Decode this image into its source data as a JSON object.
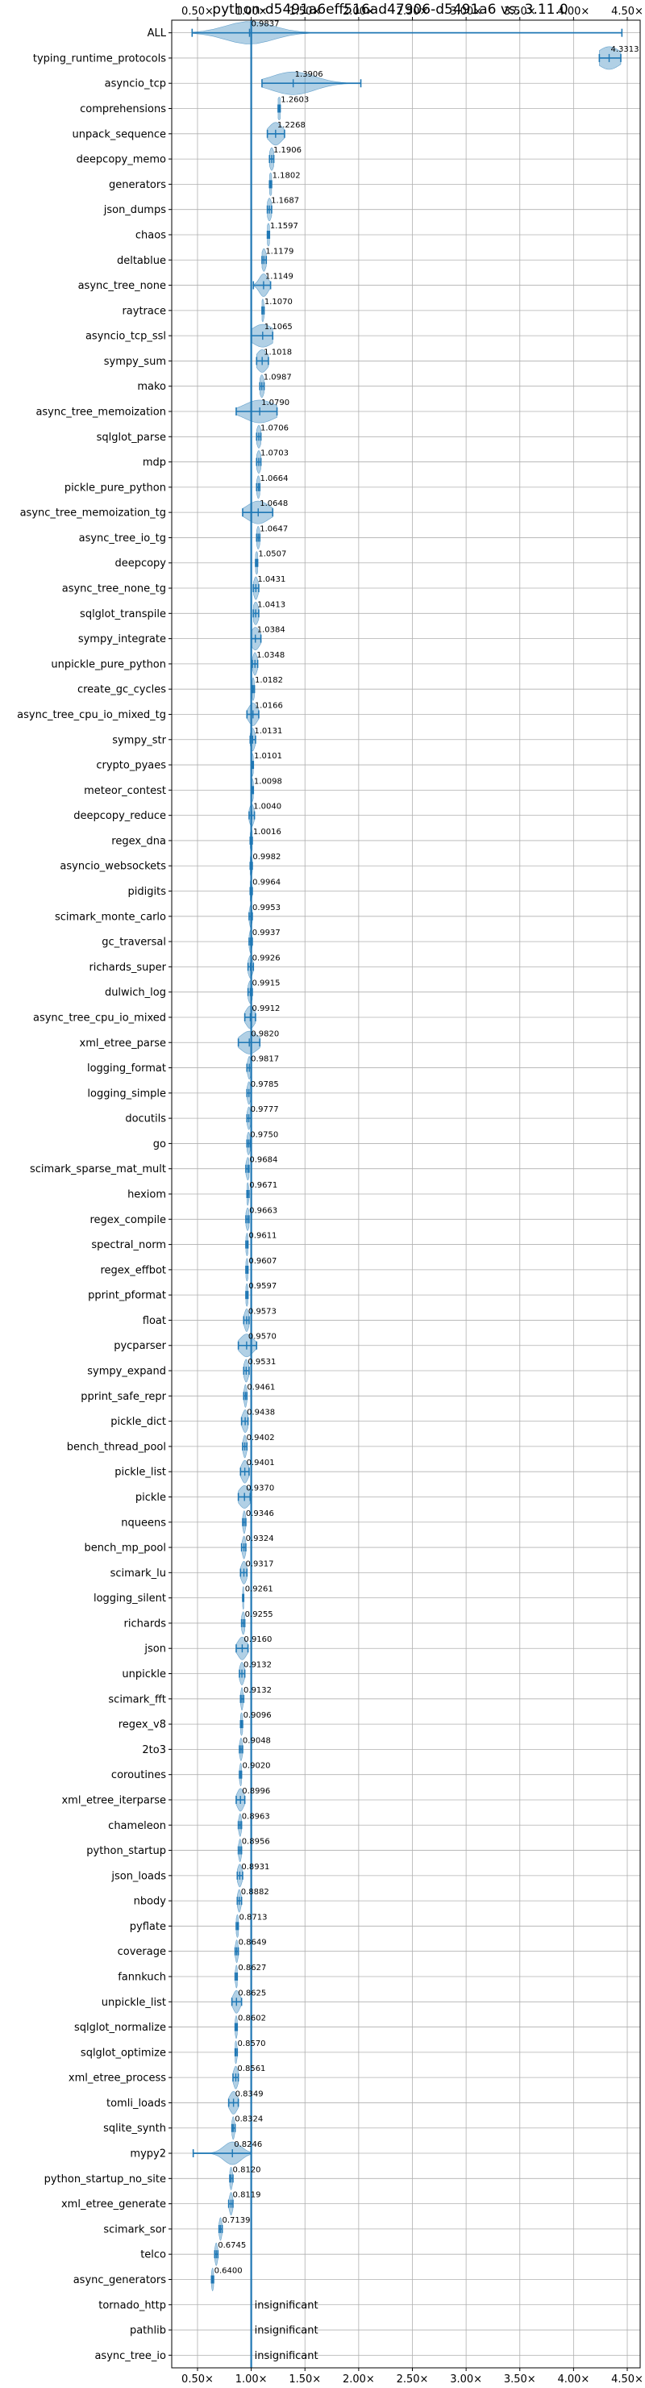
{
  "chart_data": {
    "type": "violin",
    "title": "python-d5491a6eff516ad47906-d5491a6 vs. 3.11.0",
    "x_ticks": [
      "0.50×",
      "1.00×",
      "1.50×",
      "2.00×",
      "2.50×",
      "3.00×",
      "3.50×",
      "4.00×",
      "4.50×"
    ],
    "x_tick_values": [
      0.5,
      1.0,
      1.5,
      2.0,
      2.5,
      3.0,
      3.5,
      4.0,
      4.5
    ],
    "xlim": [
      0.26,
      4.62
    ],
    "reference_line": 1.0,
    "grid": true,
    "colors": {
      "violin": "#1f77b4",
      "line": "#1f77b4",
      "grid": "#b0b0b0"
    },
    "rows": [
      {
        "name": "ALL",
        "label": "0.9837",
        "value": 0.9837,
        "lo": 0.45,
        "hi": 4.45,
        "spread": 0.22,
        "wide": true
      },
      {
        "name": "typing_runtime_protocols",
        "label": "4.3313",
        "value": 4.3313,
        "lo": 4.24,
        "hi": 4.44,
        "spread": 0.1
      },
      {
        "name": "asyncio_tcp",
        "label": "1.3906",
        "value": 1.3906,
        "lo": 1.1,
        "hi": 2.02,
        "spread": 0.2
      },
      {
        "name": "comprehensions",
        "label": "1.2603",
        "value": 1.2603,
        "lo": 1.25,
        "hi": 1.27,
        "spread": 0.02
      },
      {
        "name": "unpack_sequence",
        "label": "1.2268",
        "value": 1.2268,
        "lo": 1.15,
        "hi": 1.31,
        "spread": 0.06
      },
      {
        "name": "deepcopy_memo",
        "label": "1.1906",
        "value": 1.1906,
        "lo": 1.17,
        "hi": 1.21,
        "spread": 0.02
      },
      {
        "name": "generators",
        "label": "1.1802",
        "value": 1.1802,
        "lo": 1.17,
        "hi": 1.19,
        "spread": 0.015
      },
      {
        "name": "json_dumps",
        "label": "1.1687",
        "value": 1.1687,
        "lo": 1.15,
        "hi": 1.19,
        "spread": 0.02
      },
      {
        "name": "chaos",
        "label": "1.1597",
        "value": 1.1597,
        "lo": 1.15,
        "hi": 1.17,
        "spread": 0.015
      },
      {
        "name": "deltablue",
        "label": "1.1179",
        "value": 1.1179,
        "lo": 1.1,
        "hi": 1.14,
        "spread": 0.02
      },
      {
        "name": "async_tree_none",
        "label": "1.1149",
        "value": 1.1149,
        "lo": 1.02,
        "hi": 1.18,
        "spread": 0.04
      },
      {
        "name": "raytrace",
        "label": "1.1070",
        "value": 1.107,
        "lo": 1.1,
        "hi": 1.12,
        "spread": 0.012
      },
      {
        "name": "asyncio_tcp_ssl",
        "label": "1.1065",
        "value": 1.1065,
        "lo": 1.0,
        "hi": 1.2,
        "spread": 0.1
      },
      {
        "name": "sympy_sum",
        "label": "1.1018",
        "value": 1.1018,
        "lo": 1.05,
        "hi": 1.16,
        "spread": 0.05
      },
      {
        "name": "mako",
        "label": "1.0987",
        "value": 1.0987,
        "lo": 1.08,
        "hi": 1.12,
        "spread": 0.02
      },
      {
        "name": "async_tree_memoization",
        "label": "1.0790",
        "value": 1.079,
        "lo": 0.86,
        "hi": 1.24,
        "spread": 0.14
      },
      {
        "name": "sqlglot_parse",
        "label": "1.0706",
        "value": 1.0706,
        "lo": 1.05,
        "hi": 1.09,
        "spread": 0.02
      },
      {
        "name": "mdp",
        "label": "1.0703",
        "value": 1.0703,
        "lo": 1.05,
        "hi": 1.09,
        "spread": 0.02
      },
      {
        "name": "pickle_pure_python",
        "label": "1.0664",
        "value": 1.0664,
        "lo": 1.05,
        "hi": 1.08,
        "spread": 0.015
      },
      {
        "name": "async_tree_memoization_tg",
        "label": "1.0648",
        "value": 1.0648,
        "lo": 0.92,
        "hi": 1.2,
        "spread": 0.1
      },
      {
        "name": "async_tree_io_tg",
        "label": "1.0647",
        "value": 1.0647,
        "lo": 1.05,
        "hi": 1.08,
        "spread": 0.015
      },
      {
        "name": "deepcopy",
        "label": "1.0507",
        "value": 1.0507,
        "lo": 1.04,
        "hi": 1.06,
        "spread": 0.015
      },
      {
        "name": "async_tree_none_tg",
        "label": "1.0431",
        "value": 1.0431,
        "lo": 1.02,
        "hi": 1.07,
        "spread": 0.02
      },
      {
        "name": "sqlglot_transpile",
        "label": "1.0413",
        "value": 1.0413,
        "lo": 1.02,
        "hi": 1.07,
        "spread": 0.025
      },
      {
        "name": "sympy_integrate",
        "label": "1.0384",
        "value": 1.0384,
        "lo": 1.0,
        "hi": 1.09,
        "spread": 0.04
      },
      {
        "name": "unpickle_pure_python",
        "label": "1.0348",
        "value": 1.0348,
        "lo": 1.01,
        "hi": 1.06,
        "spread": 0.02
      },
      {
        "name": "create_gc_cycles",
        "label": "1.0182",
        "value": 1.0182,
        "lo": 1.01,
        "hi": 1.03,
        "spread": 0.012
      },
      {
        "name": "async_tree_cpu_io_mixed_tg",
        "label": "1.0166",
        "value": 1.0166,
        "lo": 0.96,
        "hi": 1.07,
        "spread": 0.04
      },
      {
        "name": "sympy_str",
        "label": "1.0131",
        "value": 1.0131,
        "lo": 0.99,
        "hi": 1.04,
        "spread": 0.02
      },
      {
        "name": "crypto_pyaes",
        "label": "1.0101",
        "value": 1.0101,
        "lo": 1.0,
        "hi": 1.02,
        "spread": 0.012
      },
      {
        "name": "meteor_contest",
        "label": "1.0098",
        "value": 1.0098,
        "lo": 1.0,
        "hi": 1.02,
        "spread": 0.012
      },
      {
        "name": "deepcopy_reduce",
        "label": "1.0040",
        "value": 1.004,
        "lo": 0.98,
        "hi": 1.03,
        "spread": 0.02
      },
      {
        "name": "regex_dna",
        "label": "1.0016",
        "value": 1.0016,
        "lo": 0.99,
        "hi": 1.01,
        "spread": 0.012
      },
      {
        "name": "asyncio_websockets",
        "label": "0.9982",
        "value": 0.9982,
        "lo": 0.99,
        "hi": 1.01,
        "spread": 0.01
      },
      {
        "name": "pidigits",
        "label": "0.9964",
        "value": 0.9964,
        "lo": 0.99,
        "hi": 1.01,
        "spread": 0.01
      },
      {
        "name": "scimark_monte_carlo",
        "label": "0.9953",
        "value": 0.9953,
        "lo": 0.98,
        "hi": 1.01,
        "spread": 0.012
      },
      {
        "name": "gc_traversal",
        "label": "0.9937",
        "value": 0.9937,
        "lo": 0.98,
        "hi": 1.01,
        "spread": 0.012
      },
      {
        "name": "richards_super",
        "label": "0.9926",
        "value": 0.9926,
        "lo": 0.97,
        "hi": 1.02,
        "spread": 0.02
      },
      {
        "name": "dulwich_log",
        "label": "0.9915",
        "value": 0.9915,
        "lo": 0.97,
        "hi": 1.01,
        "spread": 0.02
      },
      {
        "name": "async_tree_cpu_io_mixed",
        "label": "0.9912",
        "value": 0.9912,
        "lo": 0.94,
        "hi": 1.04,
        "spread": 0.04
      },
      {
        "name": "xml_etree_parse",
        "label": "0.9820",
        "value": 0.982,
        "lo": 0.88,
        "hi": 1.08,
        "spread": 0.08
      },
      {
        "name": "logging_format",
        "label": "0.9817",
        "value": 0.9817,
        "lo": 0.96,
        "hi": 1.0,
        "spread": 0.015
      },
      {
        "name": "logging_simple",
        "label": "0.9785",
        "value": 0.9785,
        "lo": 0.96,
        "hi": 1.0,
        "spread": 0.015
      },
      {
        "name": "docutils",
        "label": "0.9777",
        "value": 0.9777,
        "lo": 0.96,
        "hi": 1.0,
        "spread": 0.015
      },
      {
        "name": "go",
        "label": "0.9750",
        "value": 0.975,
        "lo": 0.96,
        "hi": 0.99,
        "spread": 0.015
      },
      {
        "name": "scimark_sparse_mat_mult",
        "label": "0.9684",
        "value": 0.9684,
        "lo": 0.95,
        "hi": 0.98,
        "spread": 0.015
      },
      {
        "name": "hexiom",
        "label": "0.9671",
        "value": 0.9671,
        "lo": 0.96,
        "hi": 0.98,
        "spread": 0.01
      },
      {
        "name": "regex_compile",
        "label": "0.9663",
        "value": 0.9663,
        "lo": 0.95,
        "hi": 0.98,
        "spread": 0.015
      },
      {
        "name": "spectral_norm",
        "label": "0.9611",
        "value": 0.9611,
        "lo": 0.95,
        "hi": 0.97,
        "spread": 0.012
      },
      {
        "name": "regex_effbot",
        "label": "0.9607",
        "value": 0.9607,
        "lo": 0.95,
        "hi": 0.97,
        "spread": 0.012
      },
      {
        "name": "pprint_pformat",
        "label": "0.9597",
        "value": 0.9597,
        "lo": 0.95,
        "hi": 0.97,
        "spread": 0.012
      },
      {
        "name": "float",
        "label": "0.9573",
        "value": 0.9573,
        "lo": 0.93,
        "hi": 0.98,
        "spread": 0.02
      },
      {
        "name": "pycparser",
        "label": "0.9570",
        "value": 0.957,
        "lo": 0.88,
        "hi": 1.05,
        "spread": 0.06
      },
      {
        "name": "sympy_expand",
        "label": "0.9531",
        "value": 0.9531,
        "lo": 0.93,
        "hi": 0.98,
        "spread": 0.02
      },
      {
        "name": "pprint_safe_repr",
        "label": "0.9461",
        "value": 0.9461,
        "lo": 0.93,
        "hi": 0.96,
        "spread": 0.012
      },
      {
        "name": "pickle_dict",
        "label": "0.9438",
        "value": 0.9438,
        "lo": 0.91,
        "hi": 0.97,
        "spread": 0.025
      },
      {
        "name": "bench_thread_pool",
        "label": "0.9402",
        "value": 0.9402,
        "lo": 0.92,
        "hi": 0.96,
        "spread": 0.015
      },
      {
        "name": "pickle_list",
        "label": "0.9401",
        "value": 0.9401,
        "lo": 0.9,
        "hi": 0.98,
        "spread": 0.03
      },
      {
        "name": "pickle",
        "label": "0.9370",
        "value": 0.937,
        "lo": 0.88,
        "hi": 0.99,
        "spread": 0.05
      },
      {
        "name": "nqueens",
        "label": "0.9346",
        "value": 0.9346,
        "lo": 0.92,
        "hi": 0.95,
        "spread": 0.012
      },
      {
        "name": "bench_mp_pool",
        "label": "0.9324",
        "value": 0.9324,
        "lo": 0.91,
        "hi": 0.95,
        "spread": 0.015
      },
      {
        "name": "scimark_lu",
        "label": "0.9317",
        "value": 0.9317,
        "lo": 0.9,
        "hi": 0.96,
        "spread": 0.025
      },
      {
        "name": "logging_silent",
        "label": "0.9261",
        "value": 0.9261,
        "lo": 0.92,
        "hi": 0.93,
        "spread": 0.008
      },
      {
        "name": "richards",
        "label": "0.9255",
        "value": 0.9255,
        "lo": 0.91,
        "hi": 0.94,
        "spread": 0.015
      },
      {
        "name": "json",
        "label": "0.9160",
        "value": 0.916,
        "lo": 0.86,
        "hi": 0.97,
        "spread": 0.04
      },
      {
        "name": "unpickle",
        "label": "0.9132",
        "value": 0.9132,
        "lo": 0.89,
        "hi": 0.94,
        "spread": 0.02
      },
      {
        "name": "scimark_fft",
        "label": "0.9132",
        "value": 0.9132,
        "lo": 0.9,
        "hi": 0.93,
        "spread": 0.01
      },
      {
        "name": "regex_v8",
        "label": "0.9096",
        "value": 0.9096,
        "lo": 0.9,
        "hi": 0.92,
        "spread": 0.012
      },
      {
        "name": "2to3",
        "label": "0.9048",
        "value": 0.9048,
        "lo": 0.89,
        "hi": 0.92,
        "spread": 0.012
      },
      {
        "name": "coroutines",
        "label": "0.9020",
        "value": 0.902,
        "lo": 0.89,
        "hi": 0.91,
        "spread": 0.01
      },
      {
        "name": "xml_etree_iterparse",
        "label": "0.8996",
        "value": 0.8996,
        "lo": 0.86,
        "hi": 0.94,
        "spread": 0.03
      },
      {
        "name": "chameleon",
        "label": "0.8963",
        "value": 0.8963,
        "lo": 0.88,
        "hi": 0.91,
        "spread": 0.012
      },
      {
        "name": "python_startup",
        "label": "0.8956",
        "value": 0.8956,
        "lo": 0.88,
        "hi": 0.91,
        "spread": 0.012
      },
      {
        "name": "json_loads",
        "label": "0.8931",
        "value": 0.8931,
        "lo": 0.87,
        "hi": 0.92,
        "spread": 0.02
      },
      {
        "name": "nbody",
        "label": "0.8882",
        "value": 0.8882,
        "lo": 0.87,
        "hi": 0.91,
        "spread": 0.015
      },
      {
        "name": "pyflate",
        "label": "0.8713",
        "value": 0.8713,
        "lo": 0.86,
        "hi": 0.88,
        "spread": 0.012
      },
      {
        "name": "coverage",
        "label": "0.8649",
        "value": 0.8649,
        "lo": 0.85,
        "hi": 0.88,
        "spread": 0.012
      },
      {
        "name": "fannkuch",
        "label": "0.8627",
        "value": 0.8627,
        "lo": 0.85,
        "hi": 0.87,
        "spread": 0.01
      },
      {
        "name": "unpickle_list",
        "label": "0.8625",
        "value": 0.8625,
        "lo": 0.82,
        "hi": 0.91,
        "spread": 0.03
      },
      {
        "name": "sqlglot_normalize",
        "label": "0.8602",
        "value": 0.8602,
        "lo": 0.85,
        "hi": 0.87,
        "spread": 0.01
      },
      {
        "name": "sqlglot_optimize",
        "label": "0.8570",
        "value": 0.857,
        "lo": 0.85,
        "hi": 0.87,
        "spread": 0.01
      },
      {
        "name": "xml_etree_process",
        "label": "0.8561",
        "value": 0.8561,
        "lo": 0.83,
        "hi": 0.88,
        "spread": 0.02
      },
      {
        "name": "tomli_loads",
        "label": "0.8349",
        "value": 0.8349,
        "lo": 0.79,
        "hi": 0.88,
        "spread": 0.035
      },
      {
        "name": "sqlite_synth",
        "label": "0.8324",
        "value": 0.8324,
        "lo": 0.82,
        "hi": 0.85,
        "spread": 0.012
      },
      {
        "name": "mypy2",
        "label": "0.8246",
        "value": 0.8246,
        "lo": 0.46,
        "hi": 1.0,
        "spread": 0.08
      },
      {
        "name": "python_startup_no_site",
        "label": "0.8120",
        "value": 0.812,
        "lo": 0.8,
        "hi": 0.83,
        "spread": 0.012
      },
      {
        "name": "xml_etree_generate",
        "label": "0.8119",
        "value": 0.8119,
        "lo": 0.79,
        "hi": 0.83,
        "spread": 0.015
      },
      {
        "name": "scimark_sor",
        "label": "0.7139",
        "value": 0.7139,
        "lo": 0.7,
        "hi": 0.73,
        "spread": 0.012
      },
      {
        "name": "telco",
        "label": "0.6745",
        "value": 0.6745,
        "lo": 0.66,
        "hi": 0.69,
        "spread": 0.012
      },
      {
        "name": "async_generators",
        "label": "0.6400",
        "value": 0.64,
        "lo": 0.63,
        "hi": 0.65,
        "spread": 0.01
      },
      {
        "name": "tornado_http",
        "label": "insignificant",
        "value": null
      },
      {
        "name": "pathlib",
        "label": "insignificant",
        "value": null
      },
      {
        "name": "async_tree_io",
        "label": "insignificant",
        "value": null
      }
    ]
  }
}
